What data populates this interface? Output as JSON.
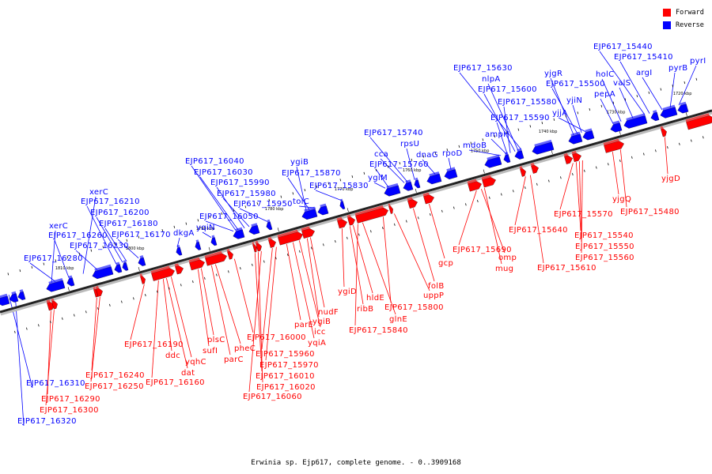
{
  "title": "Erwinia sp. Ejp617, complete genome. - 0..3909168",
  "legend": [
    {
      "label": "Forward",
      "color": "#ff0000"
    },
    {
      "label": "Reverse",
      "color": "#0000ff"
    }
  ],
  "colors": {
    "forward": "#ff0000",
    "reverse": "#0000ff",
    "backbone": "#555555"
  },
  "ticks": [
    {
      "label": "1810 kbp"
    },
    {
      "label": "1800 kbp"
    },
    {
      "label": "1790 kbp"
    },
    {
      "label": "1780 kbp"
    },
    {
      "label": "1770 kbp"
    },
    {
      "label": "1760 kbp"
    },
    {
      "label": "1750 kbp"
    },
    {
      "label": "1740 kbp"
    },
    {
      "label": "1730 kbp"
    },
    {
      "label": "1720 kbp"
    }
  ],
  "reverse_labels": [
    "EJP617_16320",
    "EJP617_16310",
    "EJP617_16280",
    "EJP617_16260",
    "xerC",
    "EJP617_16230",
    "EJP617_16210",
    "xerC",
    "EJP617_16200",
    "EJP617_16180",
    "EJP617_16170",
    "dkgA",
    "yqiN",
    "EJP617_16050",
    "EJP617_16040",
    "EJP617_16030",
    "EJP617_15990",
    "EJP617_15980",
    "EJP617_15950",
    "tolC",
    "ygiB",
    "EJP617_15870",
    "EJP617_15830",
    "ygiM",
    "EJP617_15760",
    "cca",
    "EJP617_15740",
    "rpsU",
    "dnaG",
    "rpoD",
    "mdoB",
    "ampH",
    "EJP617_15590",
    "EJP617_15580",
    "EJP617_15600",
    "nlpA",
    "EJP617_15630",
    "yjgR",
    "EJP617_15500",
    "yjiN",
    "yjjA",
    "holC",
    "pepA",
    "valS",
    "EJP617_15440",
    "EJP617_15410",
    "argI",
    "pyrB",
    "pyrI"
  ],
  "forward_labels": [
    "EJP617_16290",
    "EJP617_16300",
    "EJP617_16240",
    "EJP617_16250",
    "EJP617_16190",
    "EJP617_16160",
    "ddc",
    "dat",
    "yqhC",
    "sufI",
    "plsC",
    "parC",
    "pheC",
    "EJP617_16000",
    "EJP617_16010",
    "EJP617_16020",
    "EJP617_16060",
    "EJP617_15960",
    "EJP617_15970",
    "parE",
    "yqiA",
    "icc",
    "ygiB",
    "nudF",
    "ygiD",
    "ribB",
    "hldE",
    "glnE",
    "EJP617_15840",
    "EJP617_15800",
    "uppP",
    "folB",
    "gcp",
    "EJP617_15690",
    "omp",
    "mug",
    "EJP617_15640",
    "EJP617_15610",
    "EJP617_15570",
    "EJP617_15540",
    "EJP617_15550",
    "EJP617_15560",
    "yjgQ",
    "EJP617_15480",
    "yjgD"
  ]
}
